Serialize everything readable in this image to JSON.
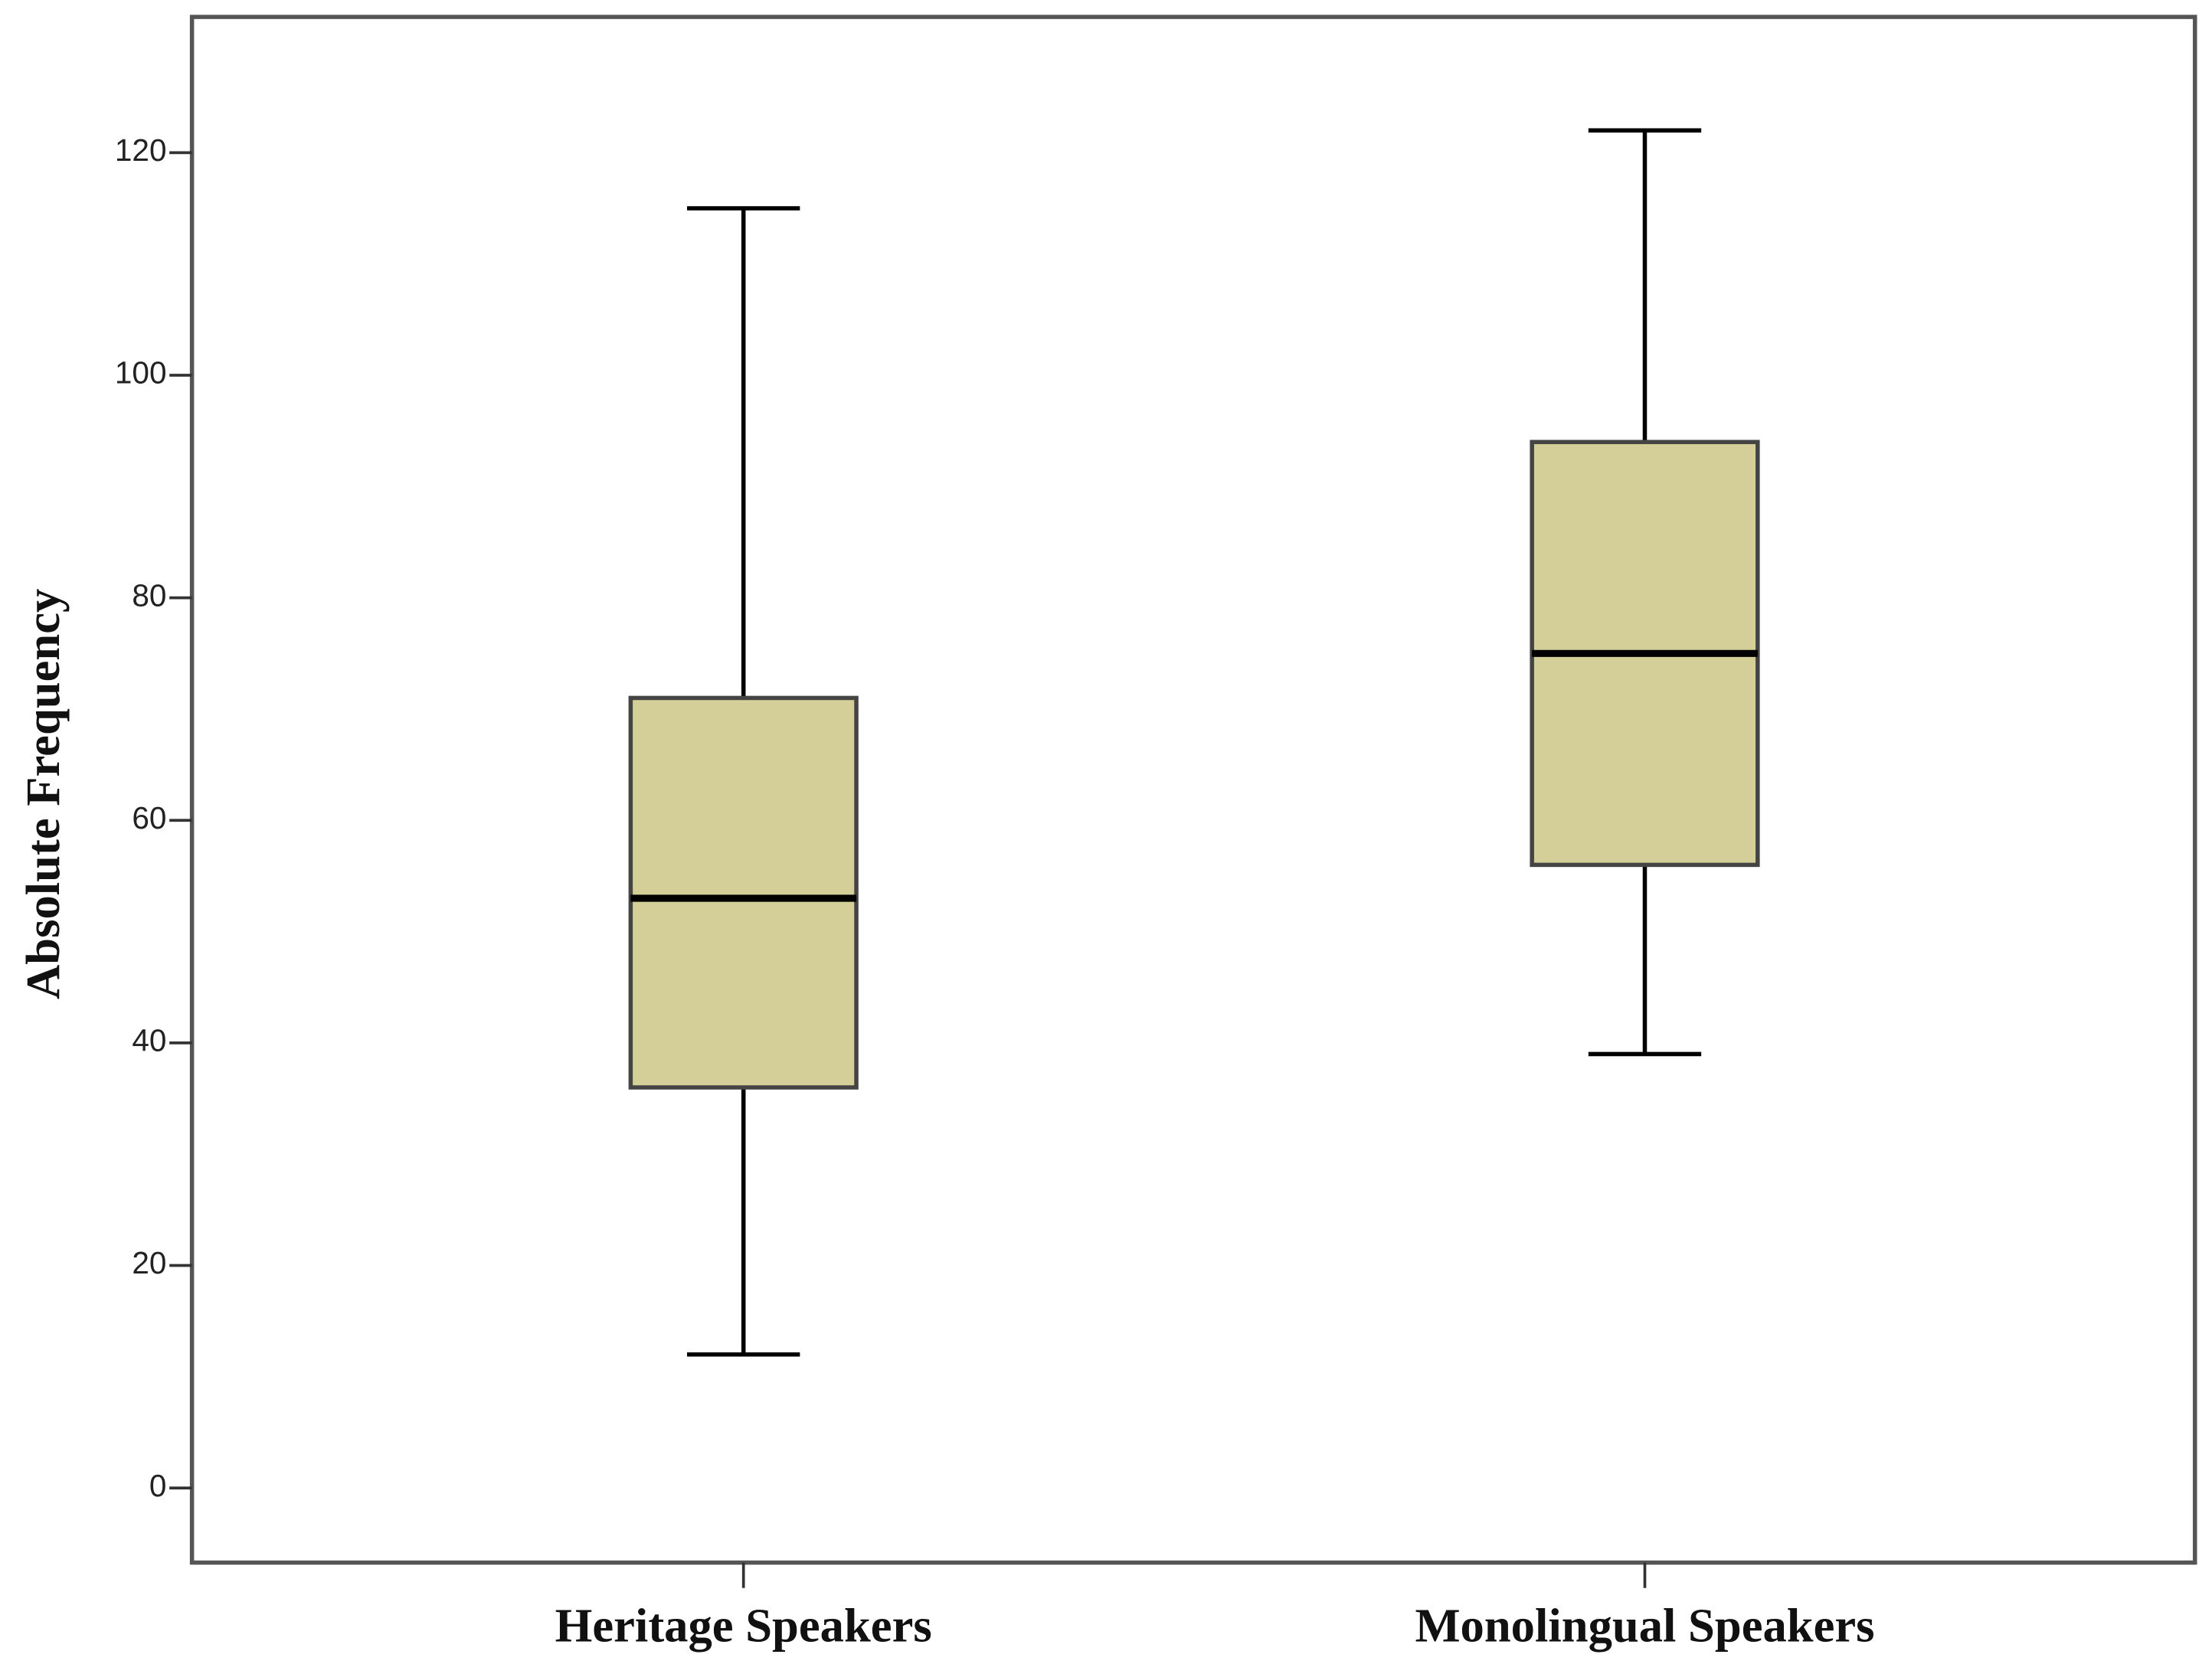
{
  "chart_data": {
    "type": "box",
    "y_label": "Absolute Frequency",
    "categories": [
      "Heritage Speakers",
      "Monolingual Speakers"
    ],
    "boxes": [
      {
        "min": 12,
        "q1": 36,
        "median": 53,
        "q3": 71,
        "max": 115
      },
      {
        "min": 39,
        "q1": 56,
        "median": 75,
        "q3": 94,
        "max": 122
      }
    ],
    "color": "#d4cf98",
    "ylim": [
      -6.7,
      132.2
    ],
    "yticks": [
      0,
      20,
      40,
      60,
      80,
      100,
      120
    ],
    "grid": false
  }
}
